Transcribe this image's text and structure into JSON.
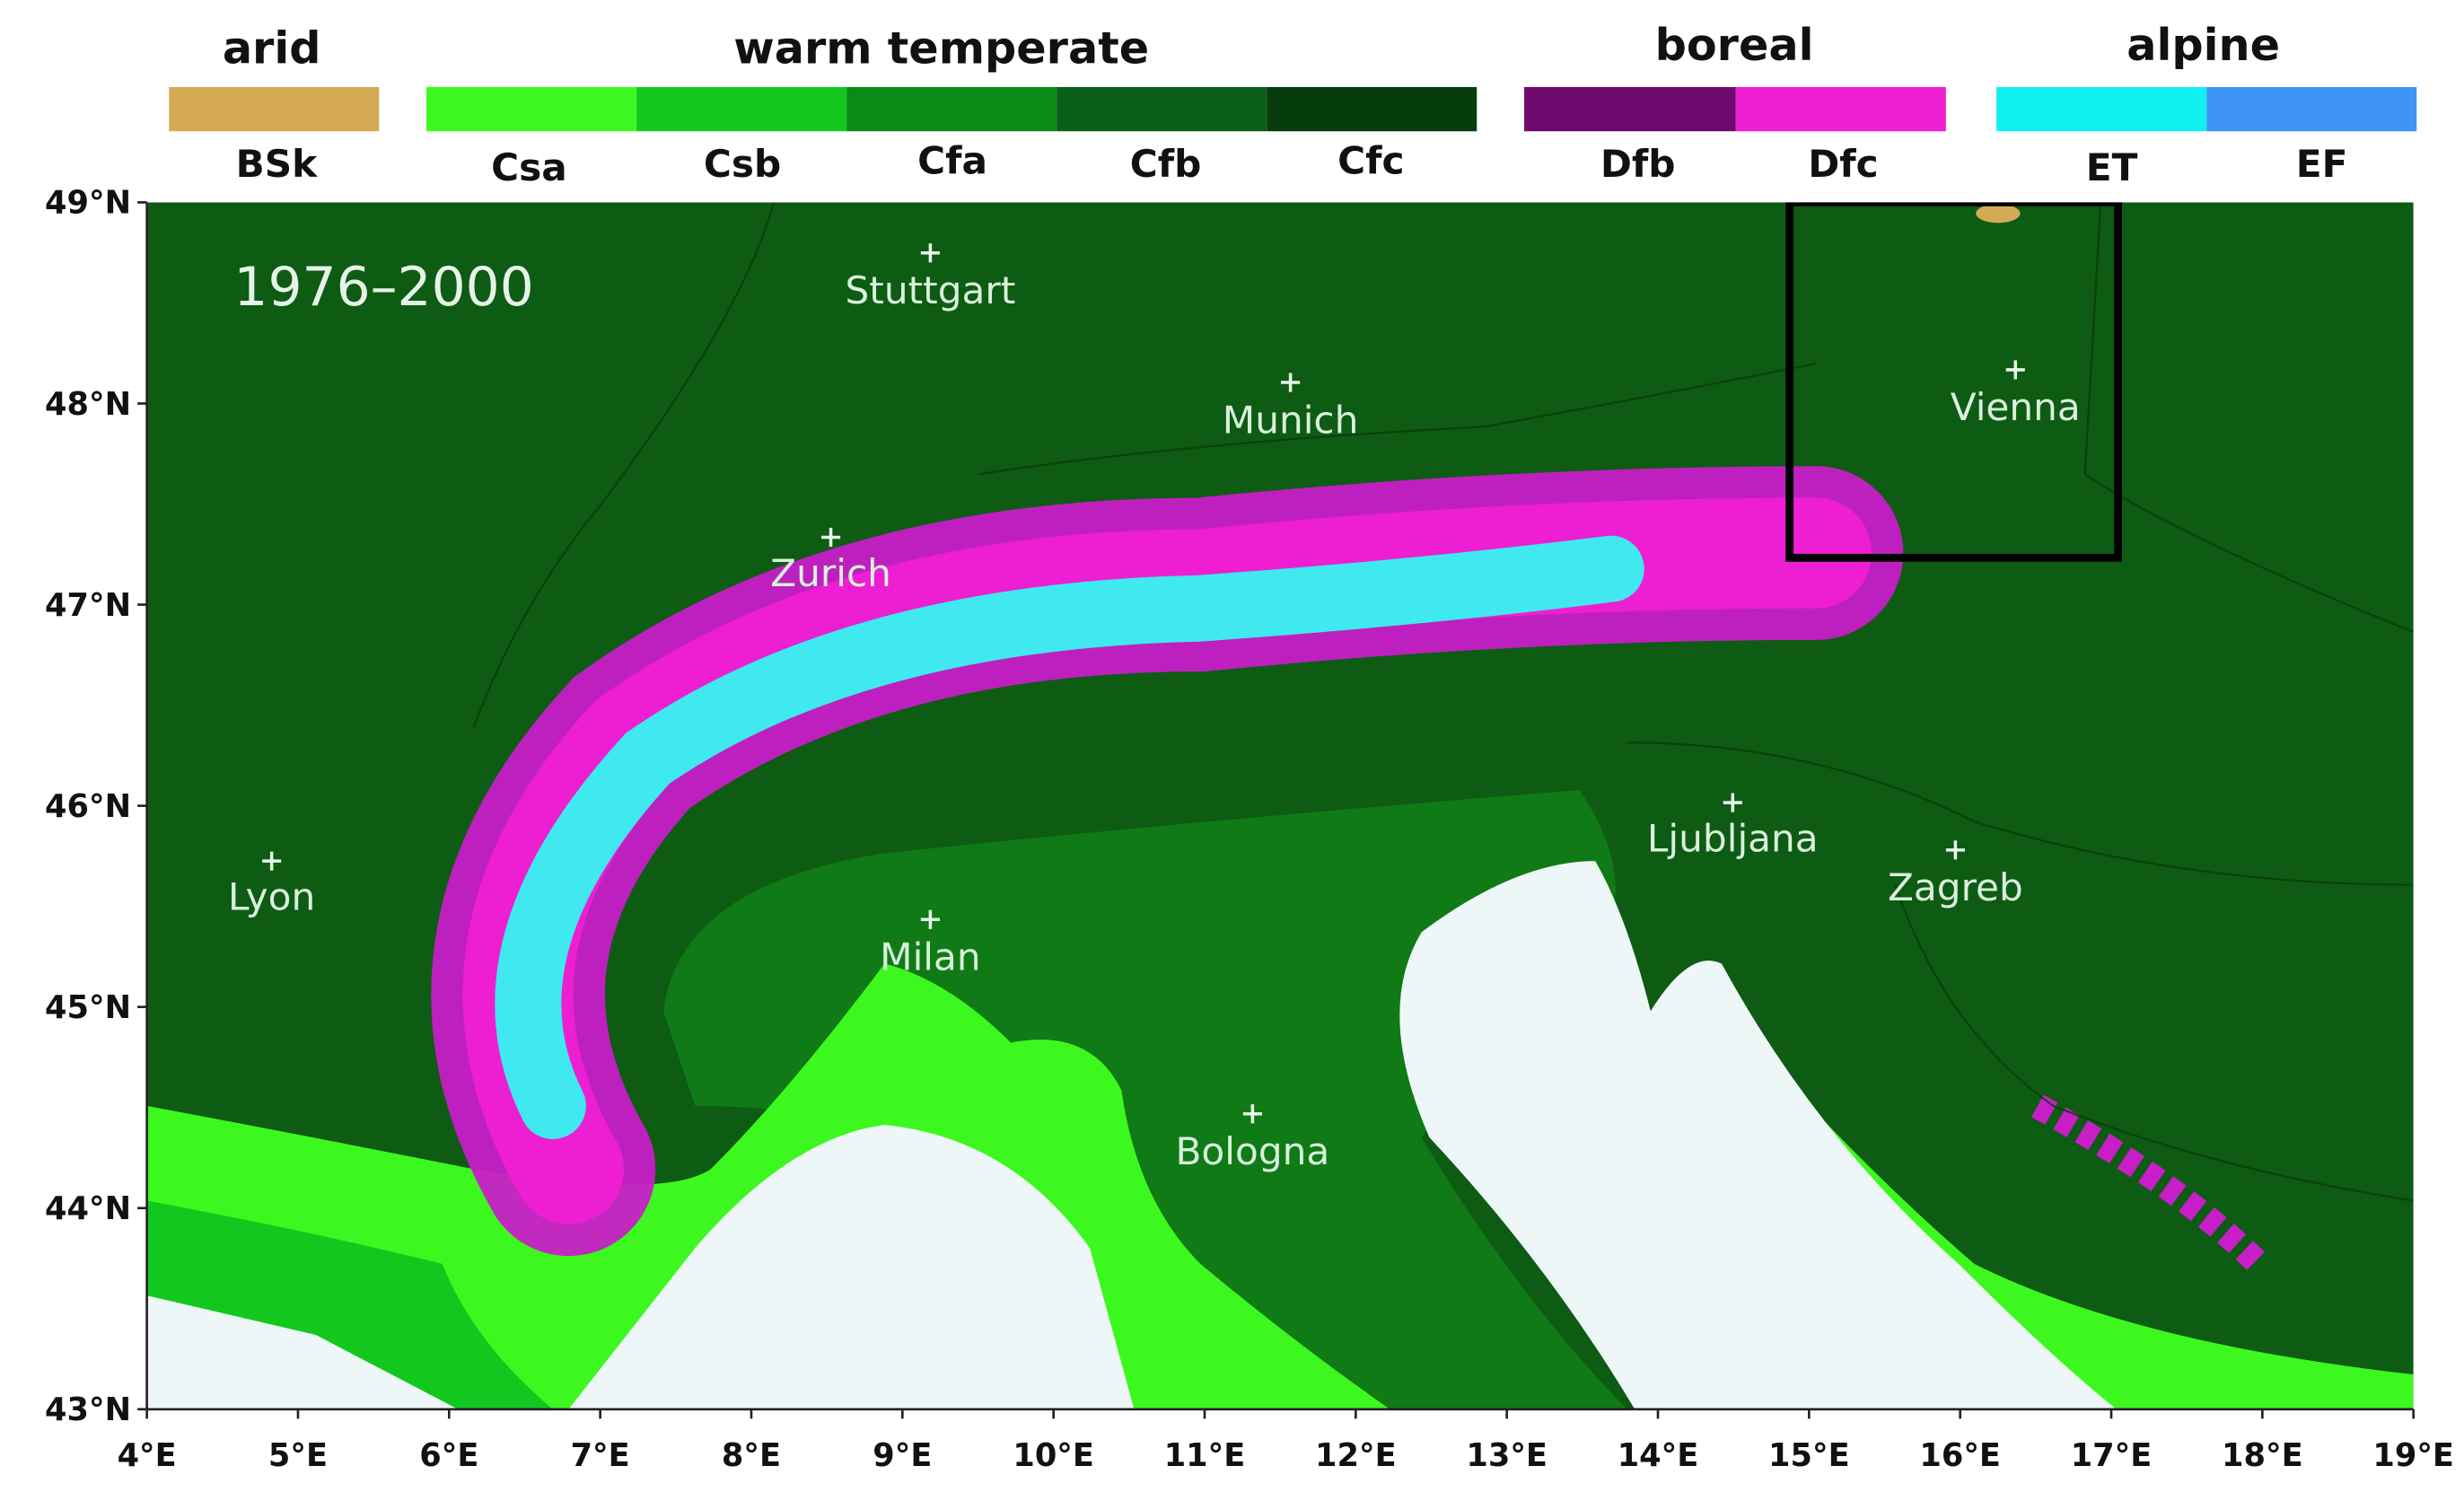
{
  "legend": {
    "groups": [
      {
        "title": "arid",
        "classes": [
          "BSk"
        ]
      },
      {
        "title": "warm temperate",
        "classes": [
          "Csa",
          "Csb",
          "Cfa",
          "Cfb",
          "Cfc"
        ]
      },
      {
        "title": "boreal",
        "classes": [
          "Dfb",
          "Dfc"
        ]
      },
      {
        "title": "alpine",
        "classes": [
          "ET",
          "EF"
        ]
      }
    ]
  },
  "map": {
    "period": "1976–2000",
    "cities": [
      "Stuttgart",
      "Munich",
      "Zurich",
      "Vienna",
      "Lyon",
      "Milan",
      "Ljubljana",
      "Zagreb",
      "Bologna"
    ]
  },
  "axes": {
    "y_ticks": [
      "49°N",
      "48°N",
      "47°N",
      "46°N",
      "45°N",
      "44°N",
      "43°N"
    ],
    "x_ticks": [
      "4°E",
      "5°E",
      "6°E",
      "7°E",
      "8°E",
      "9°E",
      "10°E",
      "11°E",
      "12°E",
      "13°E",
      "14°E",
      "15°E",
      "16°E",
      "17°E",
      "18°E",
      "19°E"
    ]
  }
}
